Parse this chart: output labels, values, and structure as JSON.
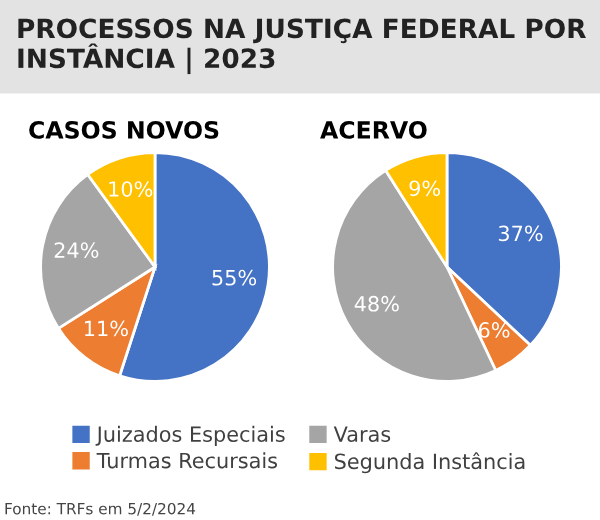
{
  "chart_data": [
    {
      "type": "pie",
      "title": "CASOS NOVOS",
      "annotations": [
        "PROCESSOS NA JUSTIÇA FEDERAL POR INSTÂNCIA | 2023",
        "Fonte: TRFs em 5/2/2024"
      ],
      "categories": [
        "Juizados Especiais",
        "Turmas Recursais",
        "Varas",
        "Segunda Instância"
      ],
      "values": [
        55,
        11,
        24,
        10
      ],
      "value_labels": [
        "55%",
        "11%",
        "24%",
        "10%"
      ],
      "colors": [
        "#4472c4",
        "#ed7d31",
        "#a5a5a5",
        "#ffc000"
      ],
      "legend": "bottom"
    },
    {
      "type": "pie",
      "title": "ACERVO",
      "categories": [
        null,
        null,
        null,
        null
      ],
      "values": [
        37,
        6,
        48,
        9
      ],
      "value_labels": [
        "37%",
        "6%",
        "48%",
        "9%"
      ],
      "colors": [
        "#4472c4",
        "#ed7d31",
        "#a5a5a5",
        "#ffc000"
      ]
    }
  ]
}
